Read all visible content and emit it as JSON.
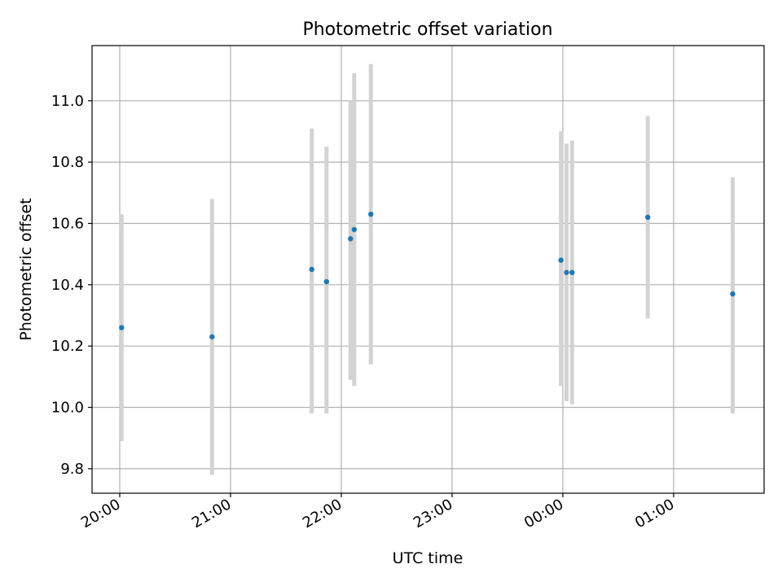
{
  "chart_data": {
    "type": "scatter",
    "title": "Photometric offset variation",
    "xlabel": "UTC time",
    "ylabel": "Photometric offset",
    "x_axis": {
      "kind": "time",
      "range": [
        "19:45",
        "01:49"
      ],
      "ticks": [
        "20:00",
        "21:00",
        "22:00",
        "23:00",
        "00:00",
        "01:00"
      ]
    },
    "y_axis": {
      "range": [
        9.72,
        11.18
      ],
      "ticks": [
        "9.8",
        "10.0",
        "10.2",
        "10.4",
        "10.6",
        "10.8",
        "11.0"
      ]
    },
    "grid": true,
    "colors": {
      "points": "#1f77b4",
      "errorbars": "#d3d3d3",
      "grid": "#b0b0b0"
    },
    "series": [
      {
        "points": [
          {
            "x": "20:01",
            "y": 10.26,
            "ylow": 9.89,
            "yhigh": 10.63
          },
          {
            "x": "20:50",
            "y": 10.23,
            "ylow": 9.78,
            "yhigh": 10.68
          },
          {
            "x": "21:44",
            "y": 10.45,
            "ylow": 9.98,
            "yhigh": 10.91
          },
          {
            "x": "21:52",
            "y": 10.41,
            "ylow": 9.98,
            "yhigh": 10.85
          },
          {
            "x": "22:05",
            "y": 10.55,
            "ylow": 10.09,
            "yhigh": 11.0
          },
          {
            "x": "22:07",
            "y": 10.58,
            "ylow": 10.07,
            "yhigh": 11.09
          },
          {
            "x": "22:16",
            "y": 10.63,
            "ylow": 10.14,
            "yhigh": 11.12
          },
          {
            "x": "23:59",
            "y": 10.48,
            "ylow": 10.07,
            "yhigh": 10.9
          },
          {
            "x": "00:02",
            "y": 10.44,
            "ylow": 10.02,
            "yhigh": 10.86
          },
          {
            "x": "00:05",
            "y": 10.44,
            "ylow": 10.01,
            "yhigh": 10.87
          },
          {
            "x": "00:46",
            "y": 10.62,
            "ylow": 10.29,
            "yhigh": 10.95
          },
          {
            "x": "01:32",
            "y": 10.37,
            "ylow": 9.98,
            "yhigh": 10.75
          }
        ]
      }
    ]
  }
}
